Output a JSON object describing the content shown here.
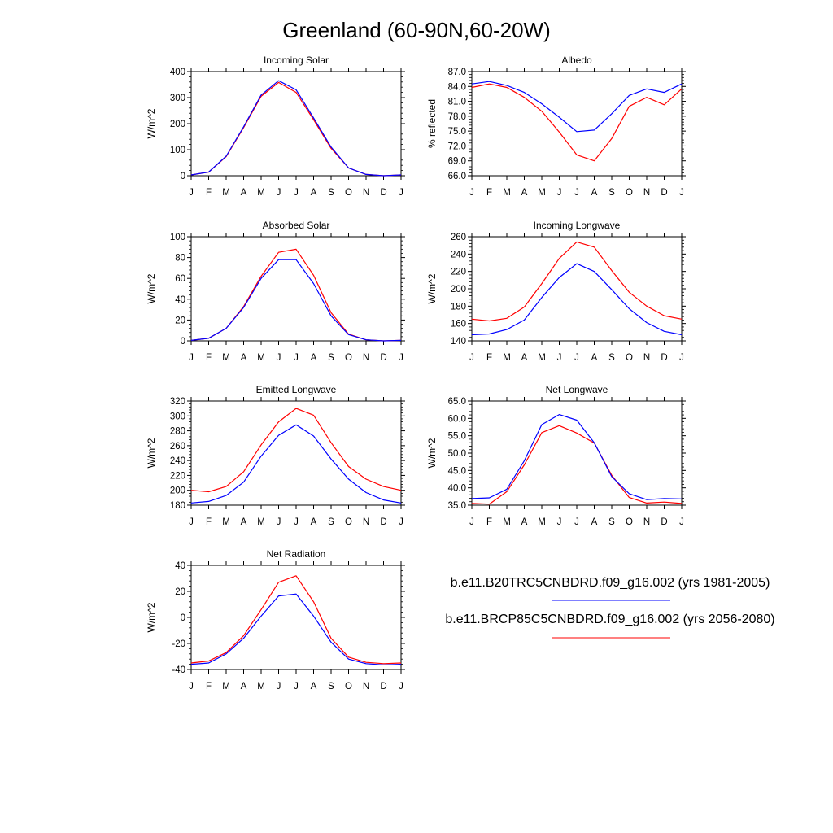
{
  "figure_title": "Greenland (60-90N,60-20W)",
  "colors": {
    "series1": "#0000ff",
    "series2": "#ff0000",
    "axis": "#000000"
  },
  "legend": [
    {
      "label": "b.e11.B20TRC5CNBDRD.f09_g16.002 (yrs 1981-2005)",
      "color": "#0000ff"
    },
    {
      "label": "b.e11.BRCP85C5CNBDRD.f09_g16.002 (yrs 2056-2080)",
      "color": "#ff0000"
    }
  ],
  "chart_data": [
    {
      "id": "incoming-solar",
      "type": "line",
      "title": "Incoming Solar",
      "ylabel": "W/m^2",
      "categories": [
        "J",
        "F",
        "M",
        "A",
        "M",
        "J",
        "J",
        "A",
        "S",
        "O",
        "N",
        "D",
        "J"
      ],
      "ylim": [
        0,
        400
      ],
      "yticks": [
        0,
        100,
        200,
        300,
        400
      ],
      "ytick_labels": [
        "0",
        "100",
        "200",
        "300",
        "400"
      ],
      "series": [
        {
          "name": "b.e11.B20TRC5CNBDRD.f09_g16.002 (yrs 1981-2005)",
          "color": "#0000ff",
          "values": [
            3,
            14,
            75,
            188,
            310,
            365,
            330,
            222,
            110,
            30,
            5,
            0,
            3
          ]
        },
        {
          "name": "b.e11.BRCP85C5CNBDRD.f09_g16.002 (yrs 2056-2080)",
          "color": "#ff0000",
          "values": [
            3,
            14,
            73,
            185,
            305,
            358,
            320,
            215,
            105,
            30,
            5,
            0,
            3
          ]
        }
      ]
    },
    {
      "id": "albedo",
      "type": "line",
      "title": "Albedo",
      "ylabel": "% reflected",
      "categories": [
        "J",
        "F",
        "M",
        "A",
        "M",
        "J",
        "J",
        "A",
        "S",
        "O",
        "N",
        "D",
        "J"
      ],
      "ylim": [
        66,
        87
      ],
      "yticks": [
        66,
        69,
        72,
        75,
        78,
        81,
        84,
        87
      ],
      "ytick_labels": [
        "66.0",
        "69.0",
        "72.0",
        "75.0",
        "78.0",
        "81.0",
        "84.0",
        "87.0"
      ],
      "series": [
        {
          "name": "b.e11.B20TRC5CNBDRD.f09_g16.002 (yrs 1981-2005)",
          "color": "#0000ff",
          "values": [
            84.5,
            85.0,
            84.2,
            82.8,
            80.5,
            77.8,
            74.9,
            75.2,
            78.5,
            82.2,
            83.5,
            82.8,
            84.5
          ]
        },
        {
          "name": "b.e11.BRCP85C5CNBDRD.f09_g16.002 (yrs 2056-2080)",
          "color": "#ff0000",
          "values": [
            83.8,
            84.5,
            83.8,
            81.8,
            79.0,
            74.8,
            70.2,
            69.0,
            73.5,
            80.0,
            81.8,
            80.3,
            83.5
          ]
        }
      ]
    },
    {
      "id": "absorbed-solar",
      "type": "line",
      "title": "Absorbed Solar",
      "ylabel": "W/m^2",
      "categories": [
        "J",
        "F",
        "M",
        "A",
        "M",
        "J",
        "J",
        "A",
        "S",
        "O",
        "N",
        "D",
        "J"
      ],
      "ylim": [
        0,
        100
      ],
      "yticks": [
        0,
        20,
        40,
        60,
        80,
        100
      ],
      "ytick_labels": [
        "0",
        "20",
        "40",
        "60",
        "80",
        "100"
      ],
      "series": [
        {
          "name": "b.e11.B20TRC5CNBDRD.f09_g16.002 (yrs 1981-2005)",
          "color": "#0000ff",
          "values": [
            0.5,
            2.5,
            12,
            32,
            60,
            78,
            78,
            55,
            24,
            6,
            1,
            0,
            0.5
          ]
        },
        {
          "name": "b.e11.BRCP85C5CNBDRD.f09_g16.002 (yrs 2056-2080)",
          "color": "#ff0000",
          "values": [
            0.5,
            2.5,
            12,
            33,
            62,
            85,
            88,
            63,
            27,
            6.5,
            1,
            0,
            0.5
          ]
        }
      ]
    },
    {
      "id": "incoming-longwave",
      "type": "line",
      "title": "Incoming Longwave",
      "ylabel": "W/m^2",
      "categories": [
        "J",
        "F",
        "M",
        "A",
        "M",
        "J",
        "J",
        "A",
        "S",
        "O",
        "N",
        "D",
        "J"
      ],
      "ylim": [
        140,
        260
      ],
      "yticks": [
        140,
        160,
        180,
        200,
        220,
        240,
        260
      ],
      "ytick_labels": [
        "140",
        "160",
        "180",
        "200",
        "220",
        "240",
        "260"
      ],
      "series": [
        {
          "name": "b.e11.B20TRC5CNBDRD.f09_g16.002 (yrs 1981-2005)",
          "color": "#0000ff",
          "values": [
            147,
            148,
            153,
            164,
            190,
            213,
            229,
            220,
            199,
            177,
            161,
            151,
            147
          ]
        },
        {
          "name": "b.e11.BRCP85C5CNBDRD.f09_g16.002 (yrs 2056-2080)",
          "color": "#ff0000",
          "values": [
            165,
            163,
            166,
            179,
            206,
            235,
            254,
            248,
            221,
            196,
            180,
            169,
            165
          ]
        }
      ]
    },
    {
      "id": "emitted-longwave",
      "type": "line",
      "title": "Emitted Longwave",
      "ylabel": "W/m^2",
      "categories": [
        "J",
        "F",
        "M",
        "A",
        "M",
        "J",
        "J",
        "A",
        "S",
        "O",
        "N",
        "D",
        "J"
      ],
      "ylim": [
        180,
        320
      ],
      "yticks": [
        180,
        200,
        220,
        240,
        260,
        280,
        300,
        320
      ],
      "ytick_labels": [
        "180",
        "200",
        "220",
        "240",
        "260",
        "280",
        "300",
        "320"
      ],
      "series": [
        {
          "name": "b.e11.B20TRC5CNBDRD.f09_g16.002 (yrs 1981-2005)",
          "color": "#0000ff",
          "values": [
            183,
            185,
            193,
            211,
            246,
            274,
            288,
            273,
            242,
            215,
            197,
            187,
            183
          ]
        },
        {
          "name": "b.e11.BRCP85C5CNBDRD.f09_g16.002 (yrs 2056-2080)",
          "color": "#ff0000",
          "values": [
            200,
            198,
            205,
            225,
            261,
            292,
            310,
            301,
            264,
            232,
            215,
            205,
            200
          ]
        }
      ]
    },
    {
      "id": "net-longwave",
      "type": "line",
      "title": "Net Longwave",
      "ylabel": "W/m^2",
      "categories": [
        "J",
        "F",
        "M",
        "A",
        "M",
        "J",
        "J",
        "A",
        "S",
        "O",
        "N",
        "D",
        "J"
      ],
      "ylim": [
        35,
        65
      ],
      "yticks": [
        35,
        40,
        45,
        50,
        55,
        60,
        65
      ],
      "ytick_labels": [
        "35.0",
        "40.0",
        "45.0",
        "50.0",
        "55.0",
        "60.0",
        "65.0"
      ],
      "series": [
        {
          "name": "b.e11.B20TRC5CNBDRD.f09_g16.002 (yrs 1981-2005)",
          "color": "#0000ff",
          "values": [
            36.9,
            37.1,
            39.6,
            47.8,
            58.2,
            61.1,
            59.5,
            53.0,
            43.2,
            38.3,
            36.6,
            36.9,
            36.8
          ]
        },
        {
          "name": "b.e11.BRCP85C5CNBDRD.f09_g16.002 (yrs 2056-2080)",
          "color": "#ff0000",
          "values": [
            35.5,
            35.3,
            38.9,
            46.6,
            55.9,
            57.9,
            55.8,
            52.9,
            43.6,
            37.2,
            35.6,
            35.9,
            35.5
          ]
        }
      ]
    },
    {
      "id": "net-radiation",
      "type": "line",
      "title": "Net Radiation",
      "ylabel": "W/m^2",
      "categories": [
        "J",
        "F",
        "M",
        "A",
        "M",
        "J",
        "J",
        "A",
        "S",
        "O",
        "N",
        "D",
        "J"
      ],
      "ylim": [
        -40,
        40
      ],
      "yticks": [
        -40,
        -20,
        0,
        20,
        40
      ],
      "ytick_labels": [
        "-40",
        "-20",
        "0",
        "20",
        "40"
      ],
      "series": [
        {
          "name": "b.e11.B20TRC5CNBDRD.f09_g16.002 (yrs 1981-2005)",
          "color": "#0000ff",
          "values": [
            -36,
            -35,
            -28,
            -16,
            1,
            16.5,
            18,
            1,
            -19,
            -32,
            -35.5,
            -36.5,
            -36
          ]
        },
        {
          "name": "b.e11.BRCP85C5CNBDRD.f09_g16.002 (yrs 2056-2080)",
          "color": "#ff0000",
          "values": [
            -35,
            -33.5,
            -27,
            -14,
            6,
            27,
            32,
            12,
            -16,
            -30.5,
            -34.5,
            -35.5,
            -35
          ]
        }
      ]
    }
  ]
}
